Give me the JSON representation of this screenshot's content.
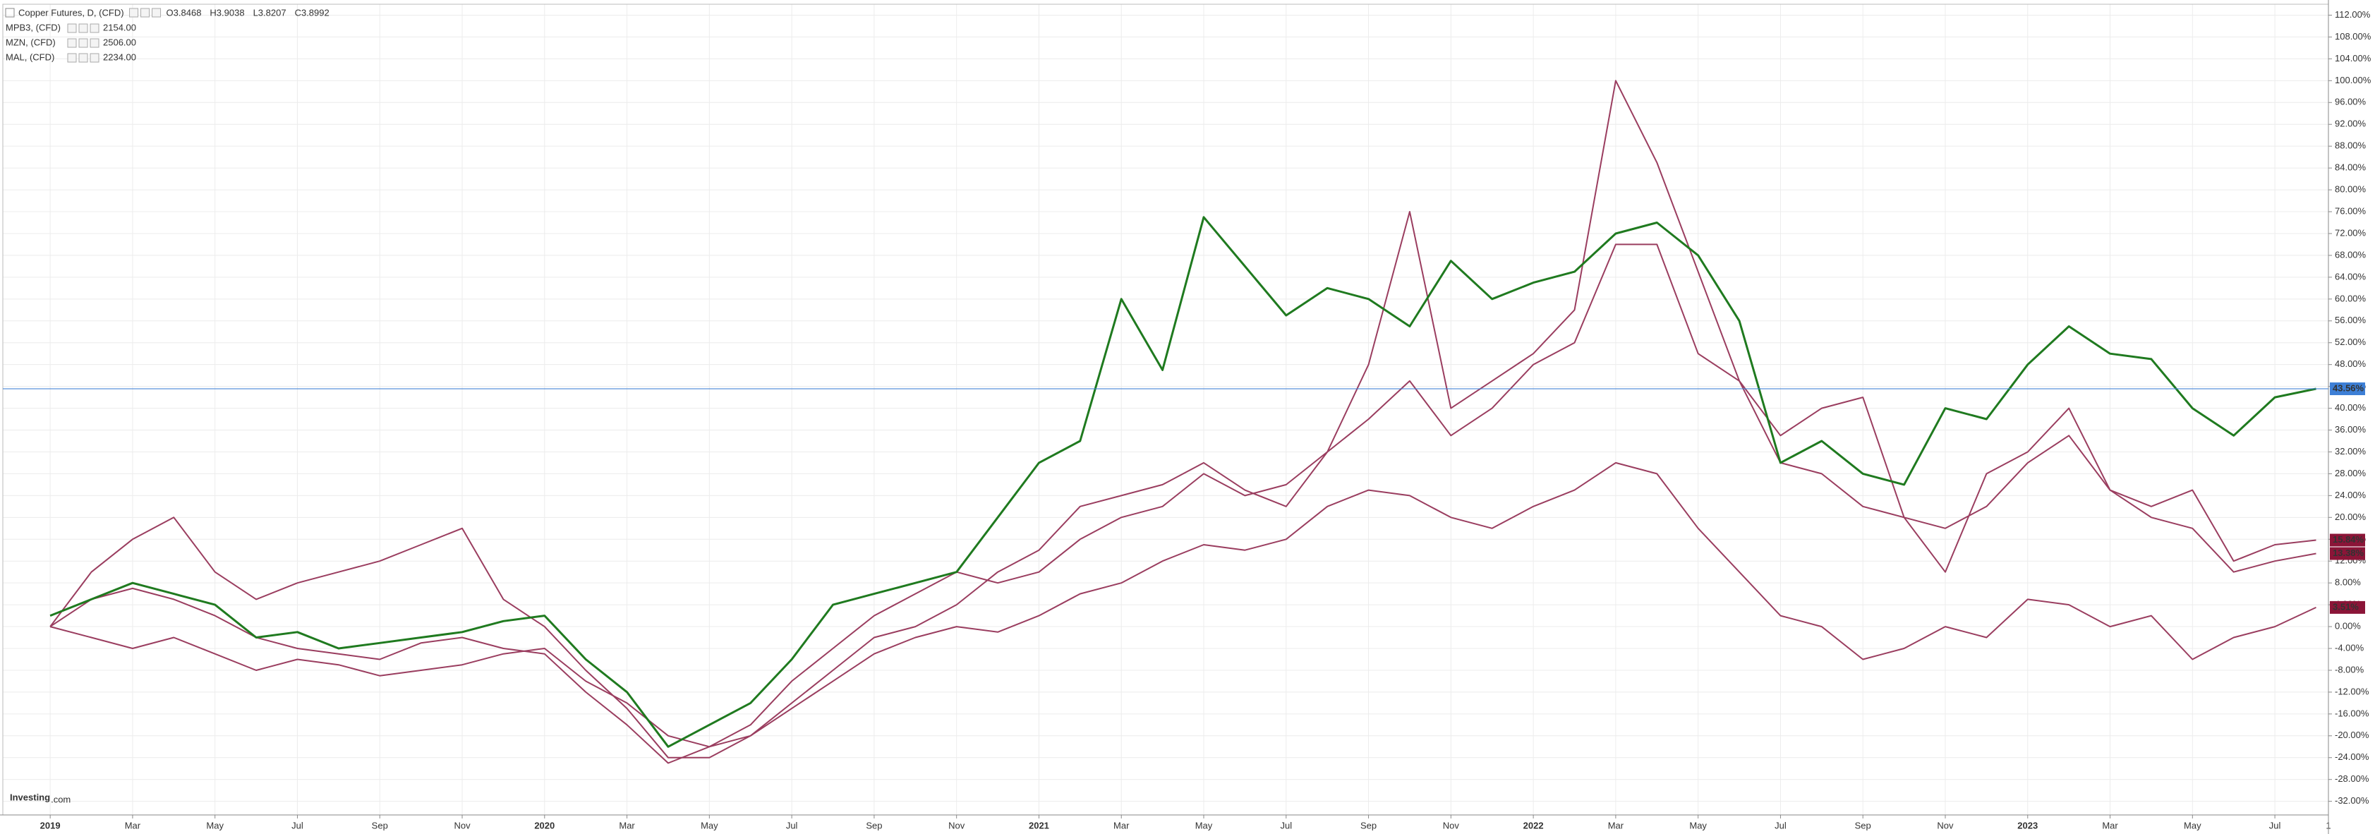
{
  "chart_data": {
    "type": "line",
    "title": "Copper Futures, D, (CFD)",
    "quote": [
      "O3.8468",
      "H3.9038",
      "L3.8207",
      "C3.8992"
    ],
    "brand": "Investing",
    "brand_suffix": ".com",
    "x": [
      0,
      1,
      2,
      3,
      4,
      5,
      6,
      7,
      8,
      9,
      10,
      11,
      12,
      13,
      14,
      15,
      16,
      17,
      18,
      19,
      20,
      21,
      22,
      23,
      24,
      25,
      26,
      27,
      28,
      29,
      30,
      31,
      32,
      33,
      34,
      35,
      36,
      37,
      38,
      39,
      40,
      41,
      42,
      43,
      44,
      45,
      46,
      47,
      48,
      49,
      50,
      51,
      52,
      53,
      54,
      55
    ],
    "xlim": [
      -1.15,
      55.3
    ],
    "xticks": [
      {
        "value": 0,
        "label": "2019"
      },
      {
        "value": 2,
        "label": "Mar"
      },
      {
        "value": 4,
        "label": "May"
      },
      {
        "value": 6,
        "label": "Jul"
      },
      {
        "value": 8,
        "label": "Sep"
      },
      {
        "value": 10,
        "label": "Nov"
      },
      {
        "value": 12,
        "label": "2020"
      },
      {
        "value": 14,
        "label": "Mar"
      },
      {
        "value": 16,
        "label": "May"
      },
      {
        "value": 18,
        "label": "Jul"
      },
      {
        "value": 20,
        "label": "Sep"
      },
      {
        "value": 22,
        "label": "Nov"
      },
      {
        "value": 24,
        "label": "2021"
      },
      {
        "value": 26,
        "label": "Mar"
      },
      {
        "value": 28,
        "label": "May"
      },
      {
        "value": 30,
        "label": "Jul"
      },
      {
        "value": 32,
        "label": "Sep"
      },
      {
        "value": 34,
        "label": "Nov"
      },
      {
        "value": 36,
        "label": "2022"
      },
      {
        "value": 38,
        "label": "Mar"
      },
      {
        "value": 40,
        "label": "May"
      },
      {
        "value": 42,
        "label": "Jul"
      },
      {
        "value": 44,
        "label": "Sep"
      },
      {
        "value": 46,
        "label": "Nov"
      },
      {
        "value": 48,
        "label": "2023"
      },
      {
        "value": 50,
        "label": "Mar"
      },
      {
        "value": 52,
        "label": "May"
      },
      {
        "value": 54,
        "label": "Jul"
      },
      {
        "value": 55.3,
        "label": "1"
      }
    ],
    "ylim": [
      -34.5,
      114
    ],
    "yticks": [
      {
        "value": -32,
        "label": "-32.00%"
      },
      {
        "value": -28,
        "label": "-28.00%"
      },
      {
        "value": -24,
        "label": "-24.00%"
      },
      {
        "value": -20,
        "label": "-20.00%"
      },
      {
        "value": -16,
        "label": "-16.00%"
      },
      {
        "value": -12,
        "label": "-12.00%"
      },
      {
        "value": -8,
        "label": "-8.00%"
      },
      {
        "value": -4,
        "label": "-4.00%"
      },
      {
        "value": 0,
        "label": "0.00%"
      },
      {
        "value": 4,
        "label": "4.00%"
      },
      {
        "value": 8,
        "label": "8.00%"
      },
      {
        "value": 12,
        "label": "12.00%"
      },
      {
        "value": 16,
        "label": "16.00%"
      },
      {
        "value": 20,
        "label": "20.00%"
      },
      {
        "value": 24,
        "label": "24.00%"
      },
      {
        "value": 28,
        "label": "28.00%"
      },
      {
        "value": 32,
        "label": "32.00%"
      },
      {
        "value": 36,
        "label": "36.00%"
      },
      {
        "value": 40,
        "label": "40.00%"
      },
      {
        "value": 44,
        "label": "44.00%"
      },
      {
        "value": 48,
        "label": "48.00%"
      },
      {
        "value": 52,
        "label": "52.00%"
      },
      {
        "value": 56,
        "label": "56.00%"
      },
      {
        "value": 60,
        "label": "60.00%"
      },
      {
        "value": 64,
        "label": "64.00%"
      },
      {
        "value": 68,
        "label": "68.00%"
      },
      {
        "value": 72,
        "label": "72.00%"
      },
      {
        "value": 76,
        "label": "76.00%"
      },
      {
        "value": 80,
        "label": "80.00%"
      },
      {
        "value": 84,
        "label": "84.00%"
      },
      {
        "value": 88,
        "label": "88.00%"
      },
      {
        "value": 92,
        "label": "92.00%"
      },
      {
        "value": 96,
        "label": "96.00%"
      },
      {
        "value": 100,
        "label": "100.00%"
      },
      {
        "value": 104,
        "label": "104.00%"
      },
      {
        "value": 108,
        "label": "108.00%"
      },
      {
        "value": 112,
        "label": "112.00%"
      }
    ],
    "grid": true,
    "series": [
      {
        "name": "Copper Futures, D, (CFD)",
        "color": "#1f7a1f",
        "label_color": "#3d7fd6",
        "last_label": "43.56%",
        "values": [
          2,
          5,
          8,
          6,
          4,
          -2,
          -1,
          -4,
          -3,
          -2,
          -1,
          1,
          2,
          -6,
          -12,
          -22,
          -18,
          -14,
          -6,
          4,
          6,
          8,
          10,
          20,
          30,
          34,
          60,
          47,
          75,
          66,
          57,
          62,
          60,
          55,
          67,
          60,
          63,
          65,
          72,
          74,
          68,
          56,
          30,
          34,
          28,
          26,
          40,
          38,
          48,
          55,
          50,
          49,
          40,
          35,
          42,
          43.56
        ]
      },
      {
        "name": "MZN, (CFD)",
        "legend_value": "2506.00",
        "color": "#9a3d5f",
        "label_color": "#8b1538",
        "last_label": "15.84%",
        "values": [
          0,
          10,
          16,
          20,
          10,
          5,
          8,
          10,
          12,
          15,
          18,
          5,
          0,
          -8,
          -15,
          -24,
          -24,
          -20,
          -14,
          -8,
          -2,
          0,
          4,
          10,
          14,
          22,
          24,
          26,
          30,
          25,
          22,
          32,
          48,
          76,
          40,
          45,
          50,
          58,
          100,
          85,
          65,
          45,
          35,
          40,
          42,
          20,
          10,
          28,
          32,
          40,
          25,
          22,
          25,
          12,
          15,
          15.84
        ]
      },
      {
        "name": "MPB3, (CFD)",
        "legend_value": "2154.00",
        "color": "#9a3d5f",
        "label_color": "#8b1538",
        "last_label": "13.38%",
        "values": [
          0,
          5,
          7,
          5,
          2,
          -2,
          -4,
          -5,
          -6,
          -3,
          -2,
          -4,
          -5,
          -12,
          -18,
          -25,
          -22,
          -18,
          -10,
          -4,
          2,
          6,
          10,
          8,
          10,
          16,
          20,
          22,
          28,
          24,
          26,
          32,
          38,
          45,
          35,
          40,
          48,
          52,
          70,
          70,
          50,
          45,
          30,
          28,
          22,
          20,
          18,
          22,
          30,
          35,
          25,
          20,
          18,
          10,
          12,
          13.38
        ]
      },
      {
        "name": "MAL, (CFD)",
        "legend_value": "2234.00",
        "color": "#9a3d5f",
        "label_color": "#8b1538",
        "last_label": "3.51%",
        "values": [
          0,
          -2,
          -4,
          -2,
          -5,
          -8,
          -6,
          -7,
          -9,
          -8,
          -7,
          -5,
          -4,
          -10,
          -14,
          -20,
          -22,
          -20,
          -15,
          -10,
          -5,
          -2,
          0,
          -1,
          2,
          6,
          8,
          12,
          15,
          14,
          16,
          22,
          25,
          24,
          20,
          18,
          22,
          25,
          30,
          28,
          18,
          10,
          2,
          0,
          -6,
          -4,
          0,
          -2,
          5,
          4,
          0,
          2,
          -6,
          -2,
          0,
          3.51
        ]
      }
    ],
    "legend_order": [
      2,
      1,
      3
    ]
  }
}
